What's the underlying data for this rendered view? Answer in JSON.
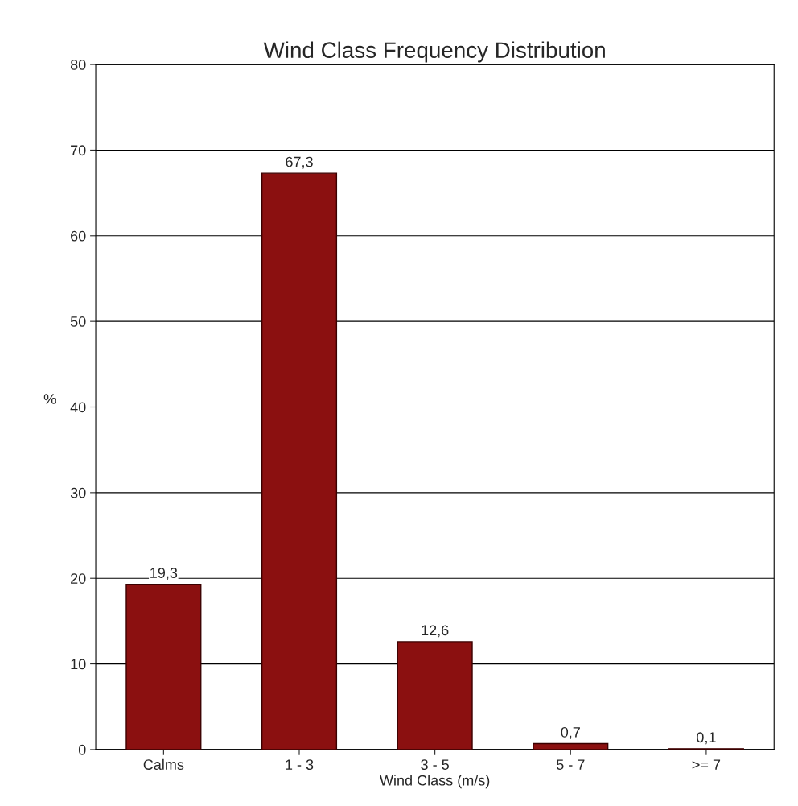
{
  "chart_data": {
    "type": "bar",
    "title": "Wind Class Frequency Distribution",
    "xlabel": "Wind Class (m/s)",
    "ylabel": "%",
    "categories": [
      "Calms",
      "1 - 3",
      "3 - 5",
      "5 - 7",
      ">= 7"
    ],
    "values": [
      19.3,
      67.3,
      12.6,
      0.7,
      0.1
    ],
    "value_labels": [
      "19,3",
      "67,3",
      "12,6",
      "0,7",
      "0,1"
    ],
    "color": "#8b1010",
    "ylim": [
      0,
      80
    ],
    "yticks": [
      0,
      10,
      20,
      30,
      40,
      50,
      60,
      70,
      80
    ],
    "grid": "y",
    "legend": false
  }
}
